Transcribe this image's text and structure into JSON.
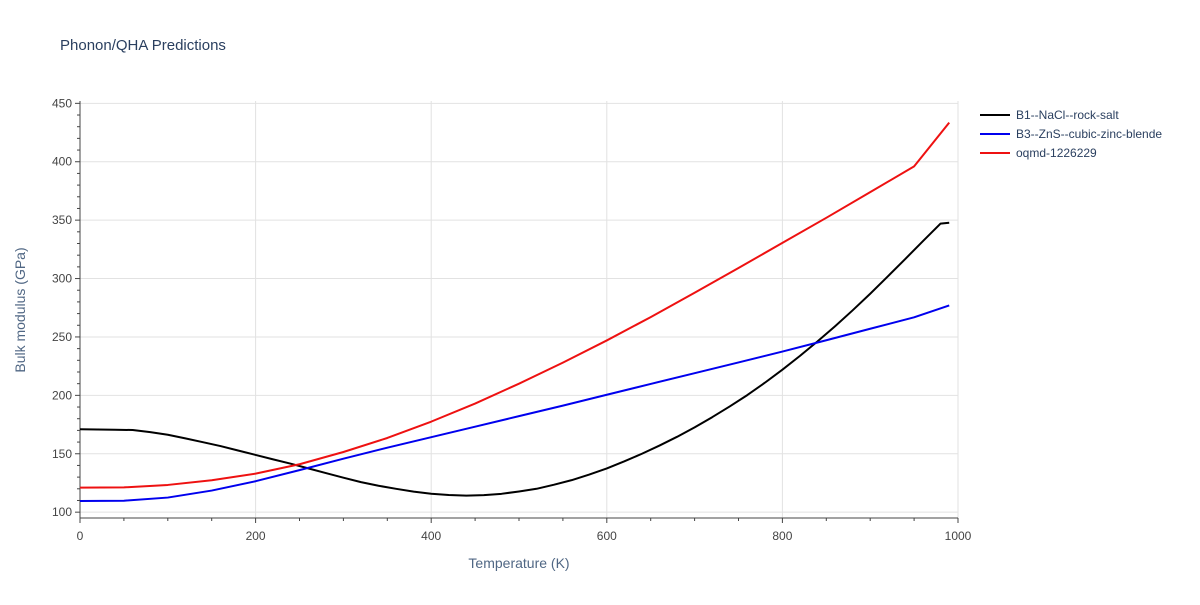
{
  "chart_data": {
    "type": "line",
    "title": "Phonon/QHA Predictions",
    "xlabel": "Temperature (K)",
    "ylabel": "Bulk modulus (GPa)",
    "xlim": [
      0,
      1000
    ],
    "ylim": [
      95,
      452
    ],
    "x_ticks": [
      0,
      200,
      400,
      600,
      800,
      1000
    ],
    "y_ticks": [
      100,
      150,
      200,
      250,
      300,
      350,
      400,
      450
    ],
    "grid": true,
    "legend_position": "top-right",
    "series": [
      {
        "name": "B1--NaCl--rock-salt",
        "color": "#000000",
        "x": [
          0,
          20,
          40,
          60,
          80,
          100,
          120,
          140,
          160,
          180,
          200,
          220,
          240,
          260,
          280,
          300,
          320,
          340,
          360,
          380,
          400,
          420,
          440,
          460,
          480,
          500,
          520,
          540,
          560,
          580,
          600,
          620,
          640,
          660,
          680,
          700,
          720,
          740,
          760,
          780,
          800,
          820,
          840,
          860,
          880,
          900,
          920,
          940,
          960,
          980,
          990
        ],
        "y": [
          171,
          170.8,
          170.6,
          170.3,
          168.5,
          166.3,
          163.2,
          159.9,
          156.6,
          152.8,
          149.0,
          145.2,
          141.5,
          137.5,
          133.5,
          129.5,
          125.7,
          122.6,
          120.0,
          117.6,
          115.8,
          114.7,
          114.2,
          114.6,
          115.7,
          117.7,
          120.0,
          123.5,
          127.4,
          132.2,
          137.4,
          143.5,
          150.0,
          157.0,
          164.5,
          172.6,
          181.3,
          190.5,
          200.2,
          210.8,
          222.0,
          233.8,
          246.2,
          259.2,
          272.8,
          287.0,
          301.8,
          316.8,
          332.0,
          347.0,
          347.8
        ]
      },
      {
        "name": "B3--ZnS--cubic-zinc-blende",
        "color": "#0000ee",
        "x": [
          0,
          50,
          100,
          150,
          200,
          250,
          300,
          350,
          400,
          450,
          500,
          550,
          600,
          650,
          700,
          750,
          800,
          850,
          900,
          950,
          990
        ],
        "y": [
          109.5,
          109.8,
          112.5,
          118.5,
          126.5,
          136.0,
          145.8,
          155.2,
          164.2,
          173.2,
          182.2,
          191.2,
          200.5,
          209.8,
          219.0,
          228.2,
          237.5,
          247.2,
          257.0,
          266.8,
          277.0
        ]
      },
      {
        "name": "oqmd-1226229",
        "color": "#ee1111",
        "x": [
          0,
          50,
          100,
          150,
          200,
          250,
          300,
          350,
          400,
          450,
          500,
          550,
          600,
          650,
          700,
          750,
          800,
          850,
          900,
          950,
          990
        ],
        "y": [
          121.0,
          121.2,
          123.3,
          127.3,
          133.0,
          141.0,
          151.5,
          163.5,
          177.5,
          193.0,
          210.0,
          228.0,
          247.0,
          267.0,
          287.8,
          309.0,
          330.5,
          352.0,
          374.0,
          396.0,
          433.5
        ]
      }
    ]
  }
}
